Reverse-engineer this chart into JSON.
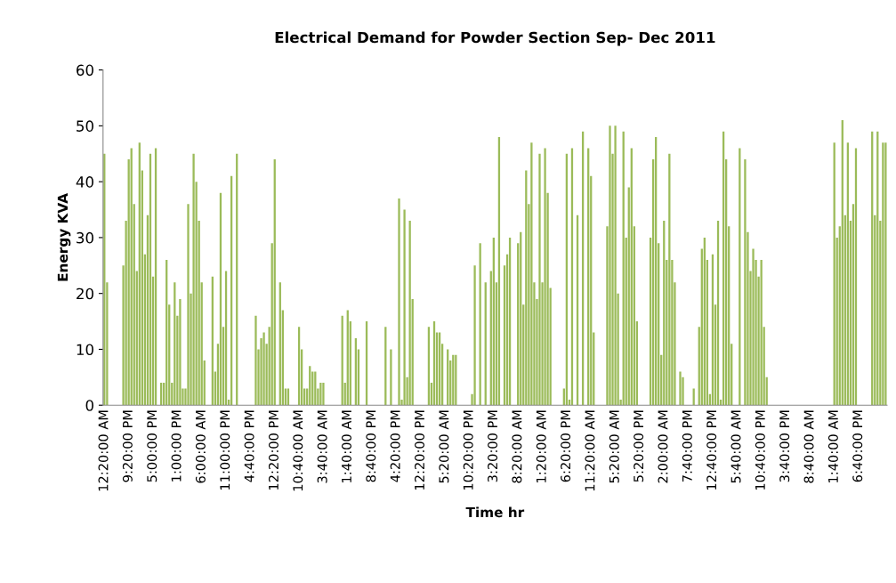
{
  "chart_data": {
    "type": "bar",
    "title": "Electrical Demand for Powder Section Sep- Dec 2011",
    "xlabel": "Time hr",
    "ylabel": "Energy KVA",
    "categories": [
      "12:20:00 AM",
      null,
      null,
      null,
      null,
      null,
      null,
      null,
      null,
      "9:20:00 PM",
      null,
      null,
      null,
      null,
      null,
      null,
      null,
      null,
      "5:00:00 PM",
      null,
      null,
      null,
      null,
      null,
      null,
      null,
      null,
      "1:00:00 PM",
      null,
      null,
      null,
      null,
      null,
      null,
      null,
      null,
      "6:00:00 AM",
      null,
      null,
      null,
      null,
      null,
      null,
      null,
      null,
      "11:00:00 PM",
      null,
      null,
      null,
      null,
      null,
      null,
      null,
      null,
      "4:40:00 PM",
      null,
      null,
      null,
      null,
      null,
      null,
      null,
      null,
      "12:20:00 PM",
      null,
      null,
      null,
      null,
      null,
      null,
      null,
      null,
      "10:40:00 AM",
      null,
      null,
      null,
      null,
      null,
      null,
      null,
      null,
      "3:40:00 AM",
      null,
      null,
      null,
      null,
      null,
      null,
      null,
      null,
      "1:40:00 AM",
      null,
      null,
      null,
      null,
      null,
      null,
      null,
      null,
      "8:40:00 PM",
      null,
      null,
      null,
      null,
      null,
      null,
      null,
      null,
      "4:20:00 PM",
      null,
      null,
      null,
      null,
      null,
      null,
      null,
      null,
      "12:20:00 PM",
      null,
      null,
      null,
      null,
      null,
      null,
      null,
      null,
      "5:20:00 AM",
      null,
      null,
      null,
      null,
      null,
      null,
      null,
      null,
      "10:20:00 PM",
      null,
      null,
      null,
      null,
      null,
      null,
      null,
      null,
      "3:20:00 PM",
      null,
      null,
      null,
      null,
      null,
      null,
      null,
      null,
      "8:20:00 AM",
      null,
      null,
      null,
      null,
      null,
      null,
      null,
      null,
      "1:20:00 AM",
      null,
      null,
      null,
      null,
      null,
      null,
      null,
      null,
      "6:20:00 PM",
      null,
      null,
      null,
      null,
      null,
      null,
      null,
      null,
      "11:20:00 AM",
      null,
      null,
      null,
      null,
      null,
      null,
      null,
      null,
      "5:20:00 AM",
      null,
      null,
      null,
      null,
      null,
      null,
      null,
      null,
      "5:20:00 PM",
      null,
      null,
      null,
      null,
      null,
      null,
      null,
      null,
      "2:00:00 AM",
      null,
      null,
      null,
      null,
      null,
      null,
      null,
      null,
      "7:40:00 PM",
      null,
      null,
      null,
      null,
      null,
      null,
      null,
      null,
      "12:40:00 PM",
      null,
      null,
      null,
      null,
      null,
      null,
      null,
      null,
      "5:40:00 AM",
      null,
      null,
      null,
      null,
      null,
      null,
      null,
      null,
      "10:40:00 PM",
      null,
      null,
      null,
      null,
      null,
      null,
      null,
      null,
      "3:40:00 PM",
      null,
      null,
      null,
      null,
      null,
      null,
      null,
      null,
      "8:40:00 AM",
      null,
      null,
      null,
      null,
      null,
      null,
      null,
      null,
      "1:40:00 AM",
      null,
      null,
      null,
      null,
      null,
      null,
      null,
      null,
      "6:40:00 PM",
      null,
      null,
      null,
      null,
      null,
      null,
      null,
      null,
      null,
      null
    ],
    "values": [
      45,
      22,
      0,
      0,
      0,
      0,
      0,
      25,
      33,
      44,
      46,
      36,
      24,
      47,
      42,
      27,
      34,
      45,
      23,
      46,
      0,
      4,
      4,
      26,
      18,
      4,
      22,
      16,
      19,
      3,
      3,
      36,
      20,
      45,
      40,
      33,
      22,
      8,
      0,
      0,
      23,
      6,
      11,
      38,
      14,
      24,
      1,
      41,
      0,
      45,
      0,
      0,
      0,
      0,
      0,
      0,
      16,
      10,
      12,
      13,
      11,
      14,
      29,
      44,
      0,
      22,
      17,
      3,
      3,
      0,
      0,
      0,
      14,
      10,
      3,
      3,
      7,
      6,
      6,
      3,
      4,
      4,
      0,
      0,
      0,
      0,
      0,
      0,
      16,
      4,
      17,
      15,
      0,
      12,
      10,
      0,
      0,
      15,
      0,
      0,
      0,
      0,
      0,
      0,
      14,
      0,
      10,
      0,
      0,
      37,
      1,
      35,
      5,
      33,
      19,
      0,
      0,
      0,
      0,
      0,
      14,
      4,
      15,
      13,
      13,
      11,
      0,
      10,
      8,
      9,
      9,
      0,
      0,
      0,
      0,
      0,
      2,
      25,
      0,
      29,
      0,
      22,
      0,
      24,
      30,
      22,
      48,
      0,
      25,
      27,
      30,
      0,
      0,
      29,
      31,
      18,
      42,
      36,
      47,
      22,
      19,
      45,
      22,
      46,
      38,
      21,
      0,
      0,
      0,
      0,
      3,
      45,
      1,
      46,
      0,
      34,
      0,
      49,
      0,
      46,
      41,
      13,
      0,
      0,
      0,
      0,
      32,
      50,
      45,
      50,
      20,
      1,
      49,
      30,
      39,
      46,
      32,
      15,
      0,
      0,
      0,
      0,
      30,
      44,
      48,
      29,
      9,
      33,
      26,
      45,
      26,
      22,
      0,
      6,
      5,
      0,
      0,
      0,
      3,
      0,
      14,
      28,
      30,
      26,
      2,
      27,
      18,
      33,
      1,
      49,
      44,
      32,
      11,
      0,
      0,
      46,
      0,
      44,
      31,
      24,
      28,
      26,
      23,
      26,
      14,
      5,
      0,
      0,
      0,
      0,
      0,
      0,
      0,
      0,
      0,
      0,
      0,
      0,
      0,
      0,
      0,
      0,
      0,
      0,
      0,
      0,
      0,
      0,
      0,
      0,
      47,
      30,
      32,
      51,
      34,
      47,
      33,
      36,
      46,
      0,
      0,
      0,
      0,
      0,
      49,
      34,
      49,
      33,
      47,
      47
    ],
    "color": "#9bbb59",
    "ylim": [
      0,
      60
    ],
    "yticks": [
      0,
      10,
      20,
      30,
      40,
      50,
      60
    ],
    "grid": false,
    "legend": false
  }
}
